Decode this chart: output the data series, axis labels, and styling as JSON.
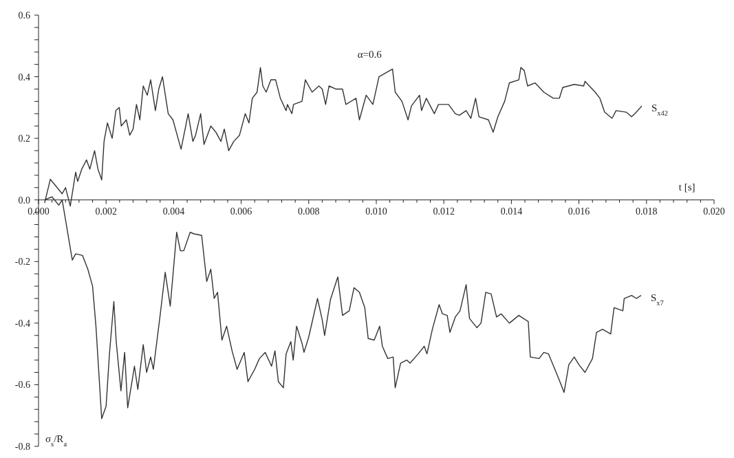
{
  "chart_data": {
    "type": "line",
    "annotations": [
      "α=0.6"
    ],
    "xlabel": "t [s]",
    "ylabel": "σ$_{s}$/R$_{a}$",
    "xlim": [
      0,
      0.02
    ],
    "ylim": [
      -0.8,
      0.6
    ],
    "xticks": [
      {
        "value": 0,
        "label": "0.000"
      },
      {
        "value": 0.0004,
        "label": null
      },
      {
        "value": 0.0008,
        "label": null
      },
      {
        "value": 0.0012,
        "label": null
      },
      {
        "value": 0.0016,
        "label": null
      },
      {
        "value": 0.002,
        "label": "0.002"
      },
      {
        "value": 0.0024,
        "label": null
      },
      {
        "value": 0.0028,
        "label": null
      },
      {
        "value": 0.0032,
        "label": null
      },
      {
        "value": 0.0036,
        "label": null
      },
      {
        "value": 0.004,
        "label": "0.004"
      },
      {
        "value": 0.0044,
        "label": null
      },
      {
        "value": 0.0048,
        "label": null
      },
      {
        "value": 0.0052,
        "label": null
      },
      {
        "value": 0.0056,
        "label": null
      },
      {
        "value": 0.006,
        "label": "0.006"
      },
      {
        "value": 0.0064,
        "label": null
      },
      {
        "value": 0.0068,
        "label": null
      },
      {
        "value": 0.0072,
        "label": null
      },
      {
        "value": 0.0076,
        "label": null
      },
      {
        "value": 0.008,
        "label": "0.008"
      },
      {
        "value": 0.0084,
        "label": null
      },
      {
        "value": 0.0088,
        "label": null
      },
      {
        "value": 0.0092,
        "label": null
      },
      {
        "value": 0.0096,
        "label": null
      },
      {
        "value": 0.01,
        "label": "0.010"
      },
      {
        "value": 0.0104,
        "label": null
      },
      {
        "value": 0.0108,
        "label": null
      },
      {
        "value": 0.0112,
        "label": null
      },
      {
        "value": 0.0116,
        "label": null
      },
      {
        "value": 0.012,
        "label": "0.012"
      },
      {
        "value": 0.0124,
        "label": null
      },
      {
        "value": 0.0128,
        "label": null
      },
      {
        "value": 0.0132,
        "label": null
      },
      {
        "value": 0.0136,
        "label": null
      },
      {
        "value": 0.014,
        "label": "0.014"
      },
      {
        "value": 0.0144,
        "label": null
      },
      {
        "value": 0.0148,
        "label": null
      },
      {
        "value": 0.0152,
        "label": null
      },
      {
        "value": 0.0156,
        "label": null
      },
      {
        "value": 0.016,
        "label": "0.016"
      },
      {
        "value": 0.0164,
        "label": null
      },
      {
        "value": 0.0168,
        "label": null
      },
      {
        "value": 0.0172,
        "label": null
      },
      {
        "value": 0.0176,
        "label": null
      },
      {
        "value": 0.018,
        "label": "0.018"
      },
      {
        "value": 0.0184,
        "label": null
      },
      {
        "value": 0.0188,
        "label": null
      },
      {
        "value": 0.0192,
        "label": null
      },
      {
        "value": 0.0196,
        "label": null
      },
      {
        "value": 0.02,
        "label": "0.020"
      }
    ],
    "yticks": [
      {
        "value": -0.8,
        "label": "-0.8"
      },
      {
        "value": -0.76,
        "label": null
      },
      {
        "value": -0.72,
        "label": null
      },
      {
        "value": -0.68,
        "label": null
      },
      {
        "value": -0.64,
        "label": null
      },
      {
        "value": -0.6,
        "label": "-0.6"
      },
      {
        "value": -0.56,
        "label": null
      },
      {
        "value": -0.52,
        "label": null
      },
      {
        "value": -0.48,
        "label": null
      },
      {
        "value": -0.44,
        "label": null
      },
      {
        "value": -0.4,
        "label": "-0.4"
      },
      {
        "value": -0.36,
        "label": null
      },
      {
        "value": -0.32,
        "label": null
      },
      {
        "value": -0.28,
        "label": null
      },
      {
        "value": -0.24,
        "label": null
      },
      {
        "value": -0.2,
        "label": "-0.2"
      },
      {
        "value": -0.16,
        "label": null
      },
      {
        "value": -0.12,
        "label": null
      },
      {
        "value": -0.08,
        "label": null
      },
      {
        "value": -0.04,
        "label": null
      },
      {
        "value": 0,
        "label": "0.0"
      },
      {
        "value": 0.04,
        "label": null
      },
      {
        "value": 0.08,
        "label": null
      },
      {
        "value": 0.12,
        "label": null
      },
      {
        "value": 0.16,
        "label": null
      },
      {
        "value": 0.2,
        "label": "0.2"
      },
      {
        "value": 0.24,
        "label": null
      },
      {
        "value": 0.28,
        "label": null
      },
      {
        "value": 0.32,
        "label": null
      },
      {
        "value": 0.36,
        "label": null
      },
      {
        "value": 0.4,
        "label": "0.4"
      },
      {
        "value": 0.44,
        "label": null
      },
      {
        "value": 0.48,
        "label": null
      },
      {
        "value": 0.52,
        "label": null
      },
      {
        "value": 0.56,
        "label": null
      },
      {
        "value": 0.6,
        "label": "0.6"
      }
    ],
    "marker": "none",
    "line_style": "solid",
    "series": [
      {
        "name": "S$_{x42}$",
        "color": "#333333",
        "x": [
          0.00018,
          0.00035,
          0.0007,
          0.0008,
          0.00094,
          0.0011,
          0.00116,
          0.00128,
          0.00142,
          0.00152,
          0.00166,
          0.00176,
          0.00187,
          0.00194,
          0.00204,
          0.00218,
          0.00229,
          0.00239,
          0.00245,
          0.0026,
          0.0027,
          0.0028,
          0.0029,
          0.003,
          0.0031,
          0.00322,
          0.00332,
          0.00346,
          0.00356,
          0.00367,
          0.00384,
          0.00398,
          0.00422,
          0.00443,
          0.00457,
          0.00465,
          0.0048,
          0.0049,
          0.0051,
          0.00525,
          0.0054,
          0.0055,
          0.00563,
          0.00578,
          0.00595,
          0.00612,
          0.00623,
          0.00633,
          0.00647,
          0.00657,
          0.00664,
          0.00674,
          0.00688,
          0.00702,
          0.00716,
          0.00733,
          0.00737,
          0.0075,
          0.00755,
          0.0078,
          0.0079,
          0.0081,
          0.0083,
          0.0084,
          0.0085,
          0.0086,
          0.0088,
          0.009,
          0.0091,
          0.0094,
          0.0095,
          0.0097,
          0.0099,
          0.01008,
          0.01024,
          0.01048,
          0.01056,
          0.01076,
          0.01094,
          0.01104,
          0.01128,
          0.01134,
          0.01148,
          0.01172,
          0.01184,
          0.01214,
          0.01234,
          0.01246,
          0.01266,
          0.0128,
          0.01294,
          0.01304,
          0.01332,
          0.01346,
          0.0136,
          0.0138,
          0.01394,
          0.01422,
          0.01428,
          0.01438,
          0.01448,
          0.0147,
          0.01496,
          0.01524,
          0.01542,
          0.01552,
          0.01586,
          0.01614,
          0.01618,
          0.01648,
          0.01662,
          0.01676,
          0.01698,
          0.0171,
          0.0174,
          0.01756,
          0.0177,
          0.01786
        ],
        "values": [
          -0.01,
          0.067,
          0.02,
          0.04,
          -0.02,
          0.09,
          0.06,
          0.1,
          0.13,
          0.1,
          0.16,
          0.1,
          0.065,
          0.19,
          0.25,
          0.2,
          0.29,
          0.3,
          0.24,
          0.26,
          0.21,
          0.23,
          0.31,
          0.26,
          0.37,
          0.34,
          0.39,
          0.29,
          0.36,
          0.4,
          0.28,
          0.26,
          0.165,
          0.28,
          0.19,
          0.21,
          0.28,
          0.18,
          0.24,
          0.22,
          0.19,
          0.23,
          0.16,
          0.19,
          0.21,
          0.28,
          0.25,
          0.33,
          0.35,
          0.43,
          0.37,
          0.35,
          0.39,
          0.39,
          0.33,
          0.29,
          0.31,
          0.28,
          0.31,
          0.32,
          0.39,
          0.35,
          0.37,
          0.36,
          0.31,
          0.37,
          0.36,
          0.36,
          0.31,
          0.33,
          0.26,
          0.34,
          0.31,
          0.4,
          0.41,
          0.425,
          0.35,
          0.32,
          0.26,
          0.305,
          0.34,
          0.29,
          0.33,
          0.28,
          0.31,
          0.31,
          0.28,
          0.275,
          0.29,
          0.265,
          0.33,
          0.27,
          0.26,
          0.22,
          0.27,
          0.32,
          0.38,
          0.39,
          0.43,
          0.42,
          0.37,
          0.38,
          0.35,
          0.33,
          0.33,
          0.365,
          0.375,
          0.37,
          0.385,
          0.35,
          0.33,
          0.285,
          0.265,
          0.29,
          0.285,
          0.27,
          0.285,
          0.305
        ]
      },
      {
        "name": "S$_{x7}$",
        "color": "#333333",
        "x": [
          0.00018,
          0.0004,
          0.0006,
          0.0007,
          0.001,
          0.0011,
          0.0013,
          0.00146,
          0.0016,
          0.0017,
          0.00187,
          0.002,
          0.0021,
          0.00223,
          0.0023,
          0.00244,
          0.00255,
          0.00264,
          0.00284,
          0.00294,
          0.0031,
          0.0032,
          0.00332,
          0.0034,
          0.0036,
          0.00375,
          0.0039,
          0.00409,
          0.0042,
          0.0043,
          0.00449,
          0.0046,
          0.00483,
          0.00498,
          0.0051,
          0.0052,
          0.0053,
          0.00543,
          0.00557,
          0.00573,
          0.00588,
          0.00609,
          0.0062,
          0.0064,
          0.00654,
          0.00671,
          0.0069,
          0.007,
          0.0071,
          0.00725,
          0.00733,
          0.00747,
          0.00754,
          0.00764,
          0.0078,
          0.00786,
          0.008,
          0.00826,
          0.0084,
          0.00847,
          0.00864,
          0.00886,
          0.009,
          0.0092,
          0.00934,
          0.0095,
          0.00966,
          0.00976,
          0.00994,
          0.0101,
          0.01018,
          0.01034,
          0.0105,
          0.01056,
          0.01072,
          0.0109,
          0.011,
          0.01124,
          0.01142,
          0.0115,
          0.01166,
          0.01186,
          0.01196,
          0.0121,
          0.01218,
          0.01234,
          0.01248,
          0.01266,
          0.01276,
          0.01298,
          0.0131,
          0.01324,
          0.0134,
          0.01356,
          0.0137,
          0.01394,
          0.01422,
          0.0145,
          0.01456,
          0.01482,
          0.01496,
          0.0151,
          0.0154,
          0.01556,
          0.0157,
          0.01586,
          0.016,
          0.01618,
          0.0164,
          0.01652,
          0.0167,
          0.01694,
          0.01704,
          0.0173,
          0.01734,
          0.01756,
          0.0177,
          0.01784
        ],
        "values": [
          0,
          0.01,
          -0.017,
          0,
          -0.195,
          -0.175,
          -0.18,
          -0.225,
          -0.28,
          -0.41,
          -0.71,
          -0.67,
          -0.5,
          -0.33,
          -0.46,
          -0.62,
          -0.495,
          -0.675,
          -0.54,
          -0.615,
          -0.47,
          -0.56,
          -0.51,
          -0.55,
          -0.375,
          -0.235,
          -0.345,
          -0.105,
          -0.165,
          -0.165,
          -0.105,
          -0.11,
          -0.115,
          -0.265,
          -0.225,
          -0.32,
          -0.3,
          -0.455,
          -0.41,
          -0.49,
          -0.55,
          -0.495,
          -0.59,
          -0.55,
          -0.515,
          -0.495,
          -0.54,
          -0.49,
          -0.59,
          -0.61,
          -0.5,
          -0.46,
          -0.52,
          -0.41,
          -0.465,
          -0.495,
          -0.445,
          -0.32,
          -0.39,
          -0.44,
          -0.325,
          -0.25,
          -0.375,
          -0.36,
          -0.285,
          -0.3,
          -0.35,
          -0.45,
          -0.455,
          -0.41,
          -0.475,
          -0.515,
          -0.51,
          -0.61,
          -0.53,
          -0.52,
          -0.53,
          -0.5,
          -0.475,
          -0.5,
          -0.42,
          -0.34,
          -0.37,
          -0.375,
          -0.43,
          -0.38,
          -0.36,
          -0.275,
          -0.385,
          -0.415,
          -0.4,
          -0.3,
          -0.305,
          -0.38,
          -0.37,
          -0.4,
          -0.375,
          -0.395,
          -0.51,
          -0.515,
          -0.495,
          -0.5,
          -0.58,
          -0.625,
          -0.535,
          -0.51,
          -0.535,
          -0.56,
          -0.515,
          -0.43,
          -0.42,
          -0.435,
          -0.35,
          -0.36,
          -0.32,
          -0.31,
          -0.32,
          -0.31
        ]
      }
    ]
  }
}
